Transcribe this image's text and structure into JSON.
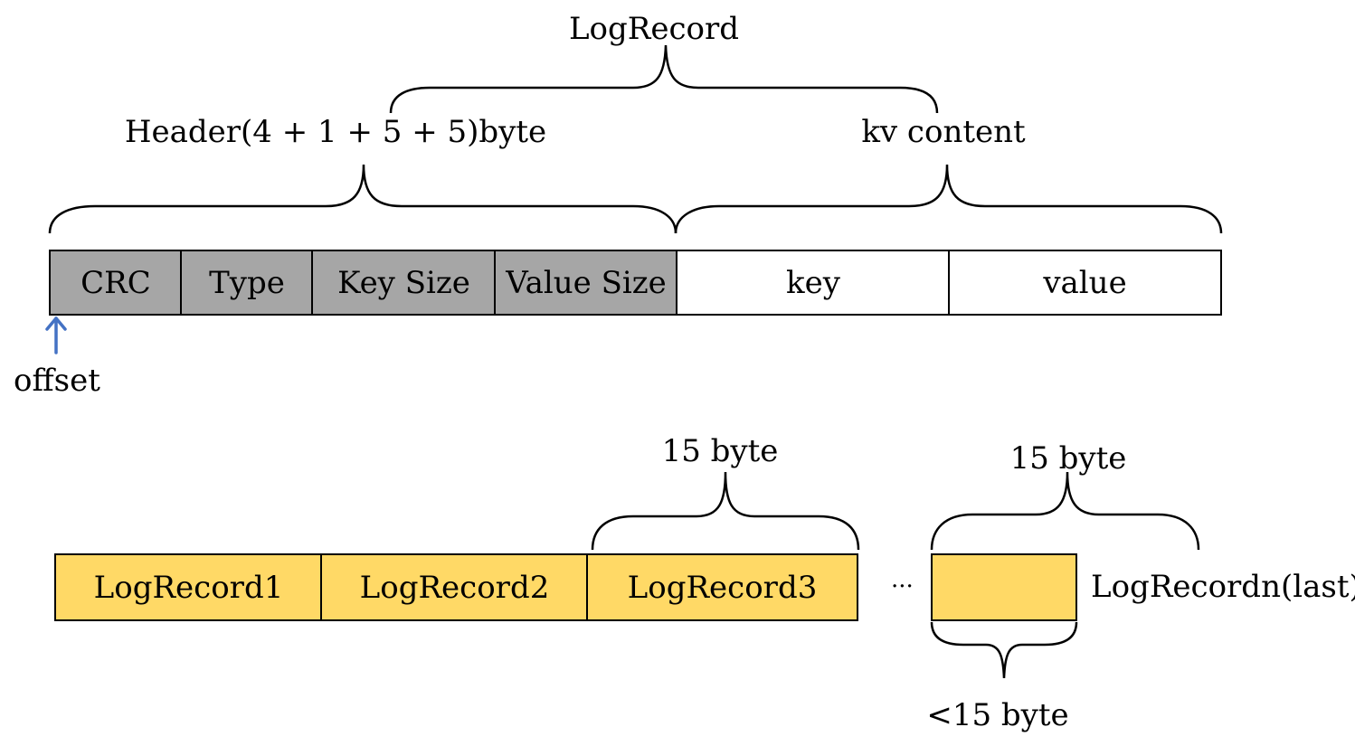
{
  "record": {
    "title": "LogRecord",
    "header_label": "Header(4 + 1 + 5 + 5)byte",
    "content_label": "kv content",
    "fields": [
      {
        "label": "CRC",
        "kind": "header"
      },
      {
        "label": "Type",
        "kind": "header"
      },
      {
        "label": "Key Size",
        "kind": "header"
      },
      {
        "label": "Value Size",
        "kind": "header"
      },
      {
        "label": "key",
        "kind": "content"
      },
      {
        "label": "value",
        "kind": "content"
      }
    ],
    "offset_label": "offset"
  },
  "block": {
    "records": [
      {
        "label": "LogRecord1"
      },
      {
        "label": "LogRecord2"
      },
      {
        "label": "LogRecord3"
      }
    ],
    "size_label_3": "15 byte",
    "ellipsis": "...",
    "size_label_last": "15 byte",
    "last_label": "LogRecordn(last)",
    "remainder_label": "<15 byte"
  },
  "colors": {
    "header_fill": "#a6a6a6",
    "content_fill": "#ffffff",
    "record_fill": "#ffd966",
    "arrow": "#4472c4",
    "stroke": "#000000"
  }
}
